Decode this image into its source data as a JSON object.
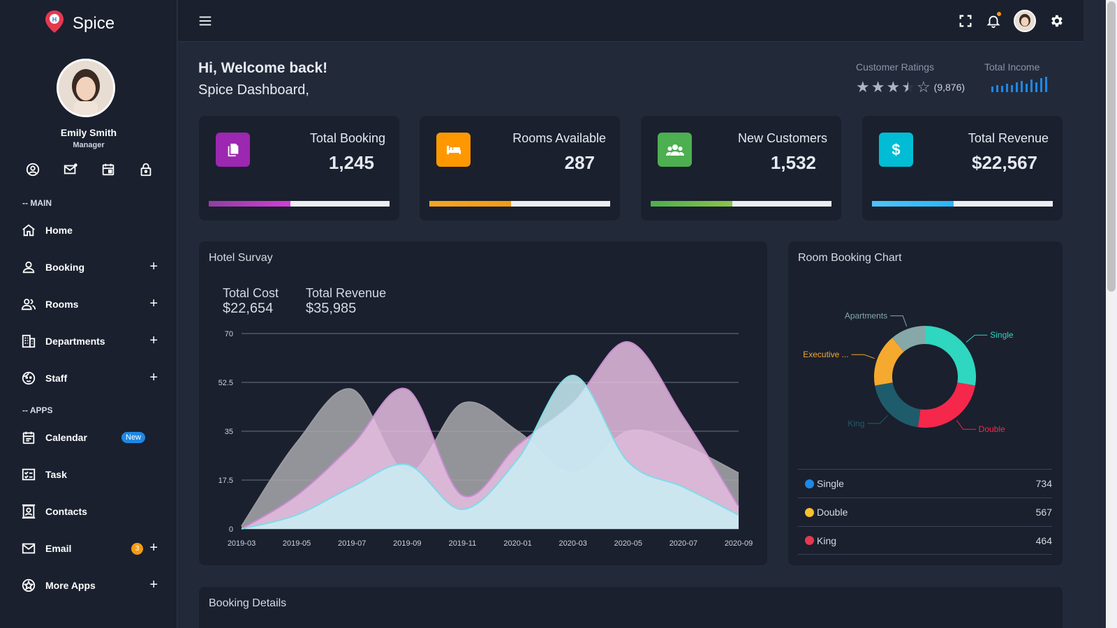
{
  "app": {
    "name": "Spice"
  },
  "user": {
    "name": "Emily Smith",
    "role": "Manager"
  },
  "sidebar": {
    "section_main": "-- MAIN",
    "section_apps": "-- APPS",
    "main_items": [
      {
        "label": "Home",
        "icon": "home-icon"
      },
      {
        "label": "Booking",
        "icon": "person-icon"
      },
      {
        "label": "Rooms",
        "icon": "people-icon"
      },
      {
        "label": "Departments",
        "icon": "building-icon"
      },
      {
        "label": "Staff",
        "icon": "face-icon"
      }
    ],
    "app_items": [
      {
        "label": "Calendar",
        "icon": "calendar-icon",
        "badge": "New"
      },
      {
        "label": "Task",
        "icon": "task-icon"
      },
      {
        "label": "Contacts",
        "icon": "contacts-icon"
      },
      {
        "label": "Email",
        "icon": "email-icon",
        "badge": "3"
      },
      {
        "label": "More Apps",
        "icon": "star-circle-icon"
      }
    ],
    "plus": "+"
  },
  "header": {
    "welcome": "Hi, Welcome back!",
    "subtitle": "Spice Dashboard,",
    "ratings_label": "Customer Ratings",
    "ratings_count": "(9,876)",
    "rating_value": 3.5,
    "income_label": "Total Income"
  },
  "stats": [
    {
      "title": "Total Booking",
      "value": "1,245",
      "icon_color": "#9c27b0",
      "bar_color": "#c039c0",
      "progress": 0.45,
      "icon": "copy-icon"
    },
    {
      "title": "Rooms Available",
      "value": "287",
      "icon_color": "#ff9800",
      "bar_color": "#f5a623",
      "progress": 0.45,
      "icon": "bed-icon"
    },
    {
      "title": "New Customers",
      "value": "1,532",
      "icon_color": "#4caf50",
      "bar_color": "#5cb85c",
      "progress": 0.45,
      "icon": "group-icon"
    },
    {
      "title": "Total Revenue",
      "value": "$22,567",
      "icon_color": "#00bcd4",
      "bar_color": "#4fc3f7",
      "progress": 0.45,
      "icon": "dollar-icon"
    }
  ],
  "survey": {
    "title": "Hotel Survay",
    "cost_label": "Total Cost",
    "cost_value": "$22,654",
    "revenue_label": "Total Revenue",
    "revenue_value": "$35,985"
  },
  "booking_chart": {
    "title": "Room Booking Chart",
    "legend": [
      {
        "name": "Single",
        "value": "734",
        "color": "#1e88e5"
      },
      {
        "name": "Double",
        "value": "567",
        "color": "#fbc02d"
      },
      {
        "name": "King",
        "value": "464",
        "color": "#e53950"
      }
    ]
  },
  "booking_details": {
    "title": "Booking Details"
  },
  "chart_data": [
    {
      "type": "area",
      "x": [
        "2019-03",
        "2019-05",
        "2019-07",
        "2019-09",
        "2019-11",
        "2020-01",
        "2020-03",
        "2020-05",
        "2020-07",
        "2020-09"
      ],
      "ylim": [
        0,
        70
      ],
      "yticks": [
        "70",
        "52.5",
        "35",
        "17.5",
        "0"
      ],
      "xticks": [
        "2019-03",
        "2019-05",
        "2019-07",
        "2019-09",
        "2019-11",
        "2020-01",
        "2020-03",
        "2020-05",
        "2020-07",
        "2020-09"
      ],
      "series": [
        {
          "values": [
            1,
            31,
            50,
            20,
            45,
            35,
            20,
            35,
            30,
            20
          ],
          "color": "#a9a9ad"
        },
        {
          "values": [
            0,
            12,
            30,
            50,
            12,
            30,
            45,
            67,
            40,
            8
          ],
          "color": "#e6bde0"
        },
        {
          "values": [
            0,
            5,
            15,
            23,
            7,
            25,
            55,
            24,
            15,
            5
          ],
          "color": "#c9eef4"
        }
      ]
    },
    {
      "type": "pie",
      "categories": [
        "Single",
        "Double",
        "King",
        "Executive ...",
        "Apartments"
      ],
      "values": [
        25,
        22,
        18,
        15,
        10
      ],
      "colors": [
        "#2fd6c0",
        "#f5274b",
        "#1f5c6b",
        "#f5a92e",
        "#86a8a8"
      ]
    }
  ]
}
